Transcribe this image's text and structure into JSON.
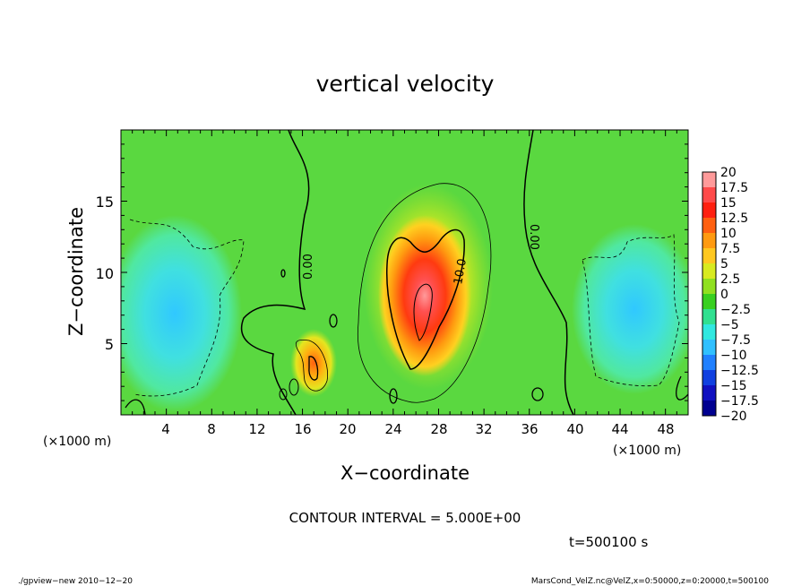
{
  "chart_data": {
    "type": "heatmap",
    "title": "vertical velocity",
    "xlabel": "X−coordinate",
    "ylabel": "Z−coordinate",
    "x_unit": "(×1000 m)",
    "z_unit": "(×1000 m)",
    "xlim": [
      0,
      50
    ],
    "ylim": [
      0,
      20
    ],
    "x_ticks": [
      "4",
      "8",
      "12",
      "16",
      "20",
      "24",
      "28",
      "32",
      "36",
      "40",
      "44",
      "48"
    ],
    "y_ticks": [
      "5",
      "10",
      "15"
    ],
    "colorbar": {
      "labels": [
        "20",
        "17.5",
        "15",
        "12.5",
        "10",
        "7.5",
        "5",
        "2.5",
        "0",
        "−2.5",
        "−5",
        "−7.5",
        "−10",
        "−12.5",
        "−15",
        "−17.5",
        "−20"
      ],
      "colors": [
        "#ff9a9a",
        "#ff4a4a",
        "#ff2010",
        "#ff6010",
        "#ff9a10",
        "#ffc820",
        "#d8ea20",
        "#90e020",
        "#38d020",
        "#30e090",
        "#30e8e0",
        "#30c0ff",
        "#2080ff",
        "#1040e0",
        "#1010c0",
        "#000090",
        "#7020b0"
      ]
    },
    "contour_labels": [
      "0.00",
      "10.0",
      "0.00"
    ],
    "contour_interval": "CONTOUR INTERVAL = 5.000E+00",
    "time": "t=500100 s"
  },
  "footer": {
    "left": "./gpview−new  2010−12−20",
    "right": "MarsCond_VelZ.nc@VelZ,x=0:50000,z=0:20000,t=500100"
  }
}
